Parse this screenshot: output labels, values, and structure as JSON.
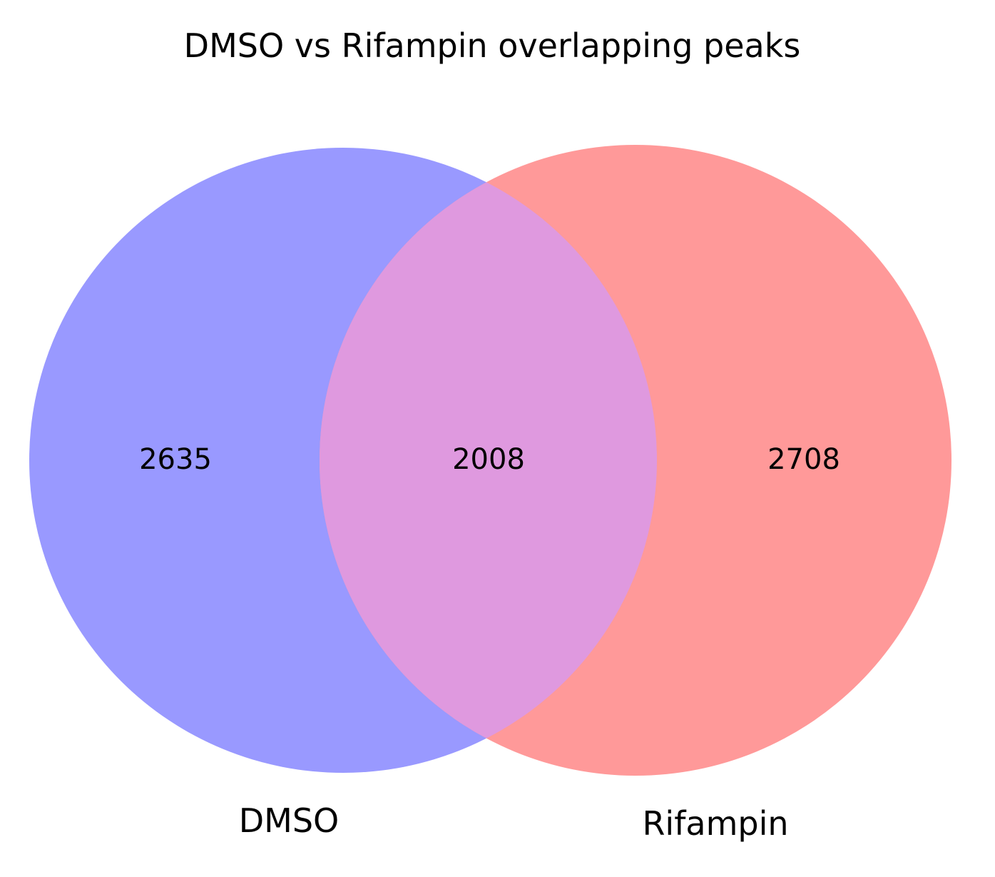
{
  "chart_data": {
    "type": "venn",
    "title": "DMSO vs Rifampin overlapping peaks",
    "sets": [
      {
        "name": "DMSO",
        "only_count": "2635",
        "color": "#9999ff"
      },
      {
        "name": "Rifampin",
        "only_count": "2708",
        "color": "#ff9999"
      }
    ],
    "intersection": {
      "count": "2008",
      "color": "#df99df"
    }
  }
}
